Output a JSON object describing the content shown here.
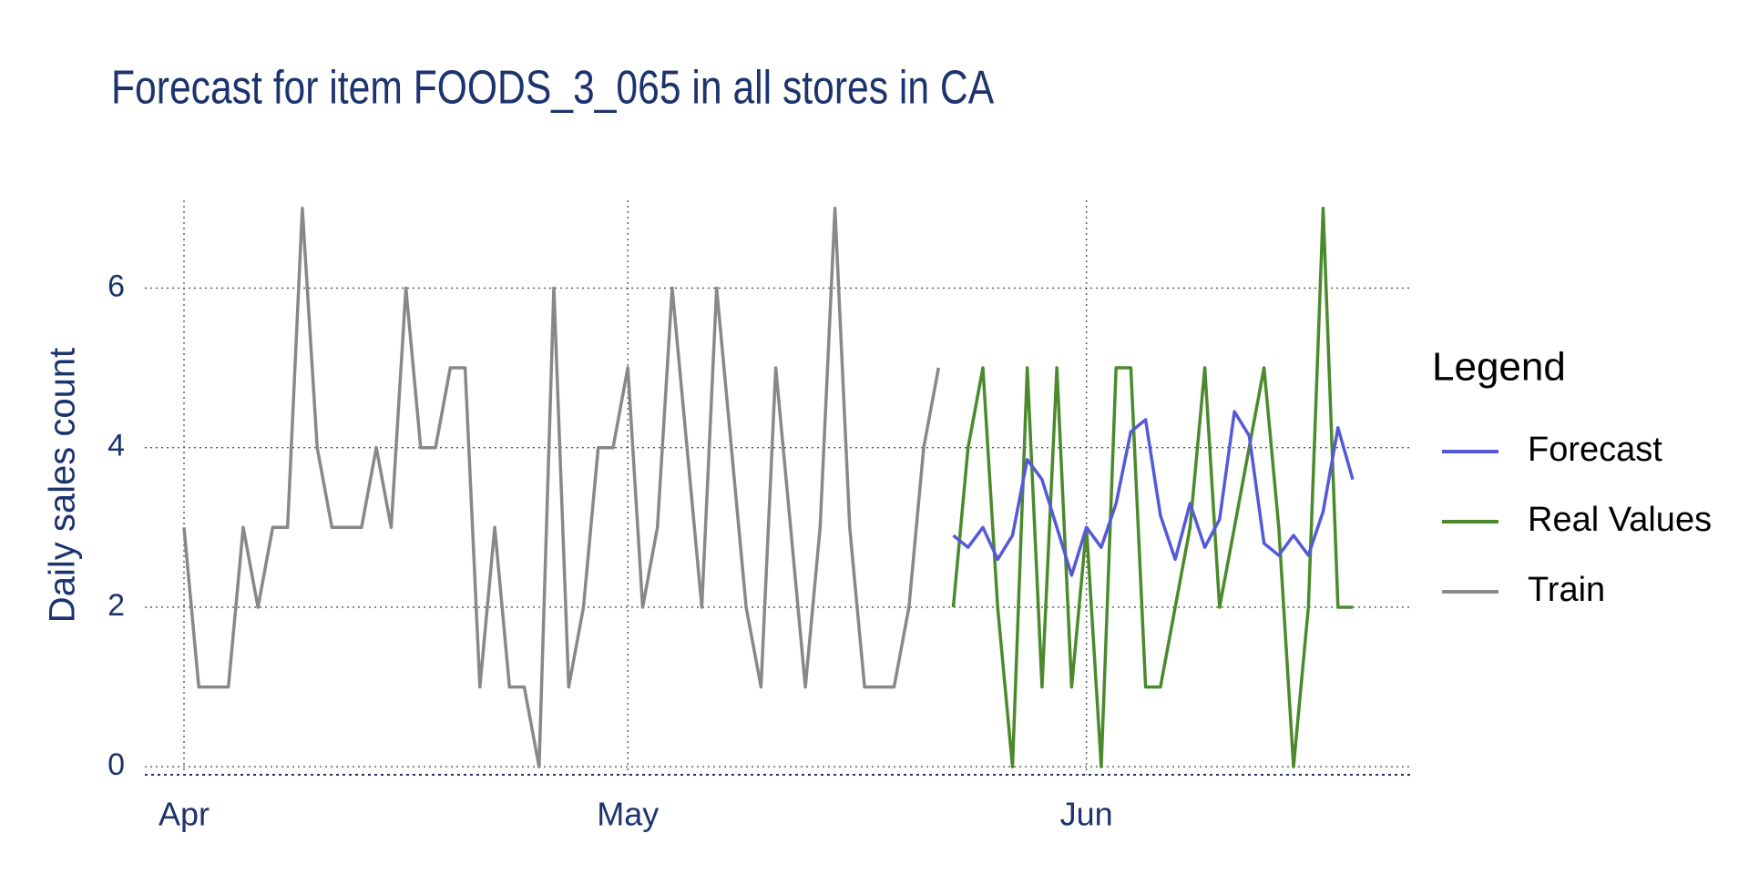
{
  "chart_data": {
    "type": "line",
    "title": "Forecast for item FOODS_3_065 in all stores in CA",
    "y_label": "Daily sales count",
    "legend_title": "Legend",
    "legend": "right",
    "grid": true,
    "categories": [
      "Apr",
      null,
      null,
      null,
      null,
      null,
      null,
      null,
      null,
      null,
      null,
      null,
      null,
      null,
      null,
      null,
      null,
      null,
      null,
      null,
      null,
      null,
      null,
      null,
      null,
      null,
      null,
      null,
      null,
      null,
      "May",
      null,
      null,
      null,
      null,
      null,
      null,
      null,
      null,
      null,
      null,
      null,
      null,
      null,
      null,
      null,
      null,
      null,
      null,
      null,
      null,
      null,
      null,
      null,
      null,
      null,
      null,
      null,
      null,
      null,
      null,
      "Jun",
      null,
      null,
      null,
      null,
      null,
      null,
      null,
      null,
      null,
      null,
      null,
      null,
      null,
      null,
      null,
      null,
      null,
      null
    ],
    "ylim": [
      -0.1,
      7.1
    ],
    "yticks": [
      0,
      2,
      4,
      6
    ],
    "series": [
      {
        "name": "Forecast",
        "color": "#5559d9",
        "values": [
          null,
          null,
          null,
          null,
          null,
          null,
          null,
          null,
          null,
          null,
          null,
          null,
          null,
          null,
          null,
          null,
          null,
          null,
          null,
          null,
          null,
          null,
          null,
          null,
          null,
          null,
          null,
          null,
          null,
          null,
          null,
          null,
          null,
          null,
          null,
          null,
          null,
          null,
          null,
          null,
          null,
          null,
          null,
          null,
          null,
          null,
          null,
          null,
          null,
          null,
          null,
          null,
          2.9,
          2.75,
          3.0,
          2.6,
          2.9,
          3.85,
          3.6,
          3.0,
          2.4,
          3.0,
          2.75,
          3.3,
          4.2,
          4.35,
          3.15,
          2.6,
          3.3,
          2.75,
          3.1,
          4.45,
          4.15,
          2.8,
          2.65,
          2.9,
          2.65,
          3.2,
          4.25,
          3.6
        ]
      },
      {
        "name": "Real Values",
        "color": "#4b8a2c",
        "values": [
          null,
          null,
          null,
          null,
          null,
          null,
          null,
          null,
          null,
          null,
          null,
          null,
          null,
          null,
          null,
          null,
          null,
          null,
          null,
          null,
          null,
          null,
          null,
          null,
          null,
          null,
          null,
          null,
          null,
          null,
          null,
          null,
          null,
          null,
          null,
          null,
          null,
          null,
          null,
          null,
          null,
          null,
          null,
          null,
          null,
          null,
          null,
          null,
          null,
          null,
          null,
          null,
          2,
          4,
          5,
          2,
          0,
          5,
          1,
          5,
          1,
          3,
          0,
          5,
          5,
          1,
          1,
          2,
          3,
          5,
          2,
          3,
          4,
          5,
          3,
          0,
          2,
          7,
          2,
          2
        ]
      },
      {
        "name": "Train",
        "color": "#888888",
        "values": [
          3,
          1,
          1,
          1,
          3,
          2,
          3,
          3,
          7,
          4,
          3,
          3,
          3,
          4,
          3,
          6,
          4,
          4,
          5,
          5,
          1,
          3,
          1,
          1,
          0,
          6,
          1,
          2,
          4,
          4,
          5,
          2,
          3,
          6,
          4,
          2,
          6,
          4,
          2,
          1,
          5,
          3,
          1,
          3,
          7,
          3,
          1,
          1,
          1,
          2,
          4,
          5,
          null,
          null,
          null,
          null,
          null,
          null,
          null,
          null,
          null,
          null,
          null,
          null,
          null,
          null,
          null,
          null,
          null,
          null,
          null,
          null,
          null,
          null,
          null,
          null,
          null,
          null,
          null,
          null
        ]
      }
    ]
  }
}
